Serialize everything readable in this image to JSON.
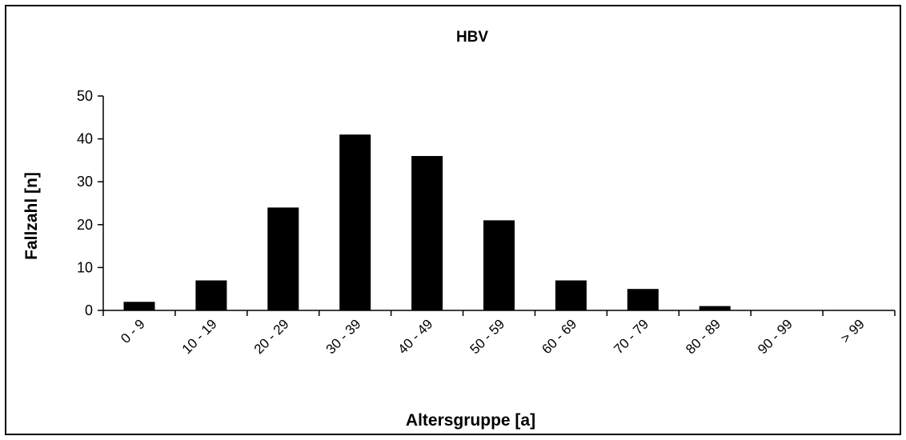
{
  "chart_data": {
    "type": "bar",
    "title": "HBV",
    "xlabel": "Altersgruppe [a]",
    "ylabel": "Fallzahl [n]",
    "categories": [
      "0 - 9",
      "10 - 19",
      "20 - 29",
      "30 - 39",
      "40 - 49",
      "50 - 59",
      "60 - 69",
      "70 - 79",
      "80 - 89",
      "90 - 99",
      "> 99"
    ],
    "values": [
      2,
      7,
      24,
      41,
      36,
      21,
      7,
      5,
      1,
      0,
      0
    ],
    "ylim": [
      0,
      50
    ],
    "yticks": [
      0,
      10,
      20,
      30,
      40,
      50
    ],
    "grid": false,
    "legend": "none",
    "bar_color": "#000000"
  }
}
